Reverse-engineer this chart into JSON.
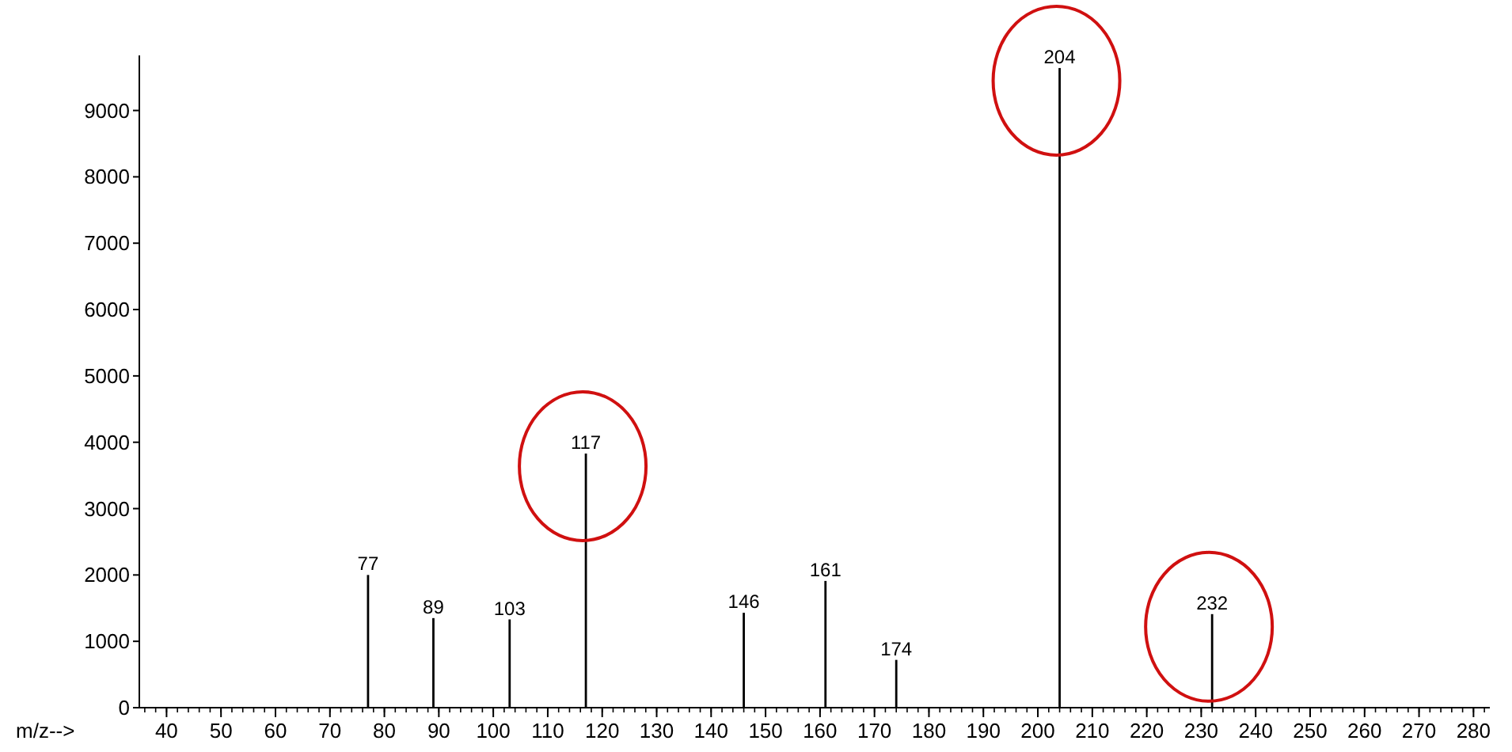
{
  "chart_data": {
    "type": "bar",
    "xlabel": "m/z-->",
    "x": [
      77,
      89,
      103,
      117,
      146,
      161,
      174,
      204,
      232
    ],
    "values": [
      2000,
      1350,
      1330,
      3830,
      1430,
      1910,
      720,
      9640,
      1410
    ],
    "annotations": [
      {
        "text": "77",
        "x": 77,
        "y": 2000
      },
      {
        "text": "89",
        "x": 89,
        "y": 1350
      },
      {
        "text": "103",
        "x": 103,
        "y": 1330
      },
      {
        "text": "117",
        "x": 117,
        "y": 3830
      },
      {
        "text": "146",
        "x": 146,
        "y": 1430
      },
      {
        "text": "161",
        "x": 161,
        "y": 1910
      },
      {
        "text": "174",
        "x": 174,
        "y": 720
      },
      {
        "text": "204",
        "x": 204,
        "y": 9640
      },
      {
        "text": "232",
        "x": 232,
        "y": 1410
      }
    ],
    "color": "#000000",
    "xlim": [
      35,
      283
    ],
    "xticks": [
      40,
      50,
      60,
      70,
      80,
      90,
      100,
      110,
      120,
      130,
      140,
      150,
      160,
      170,
      180,
      190,
      200,
      210,
      220,
      230,
      240,
      250,
      260,
      270,
      280
    ],
    "ylim": [
      0,
      9830
    ],
    "yticks": [
      0,
      1000,
      2000,
      3000,
      4000,
      5000,
      6000,
      7000,
      8000,
      9000
    ]
  }
}
